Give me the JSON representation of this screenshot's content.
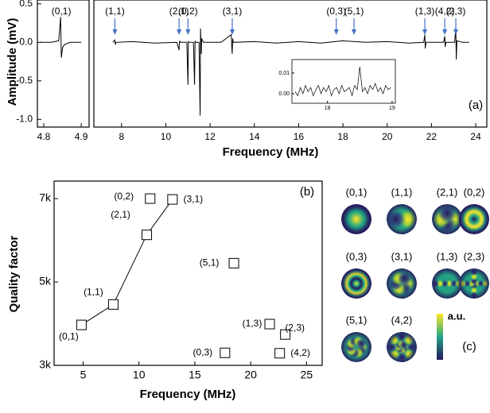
{
  "chart_data": [
    {
      "type": "line",
      "panel_label": "(a)",
      "ylabel": "Amplitude (mV)",
      "xlabel": "Frequency (MHz)",
      "ylim": [
        -1.1,
        0.55
      ],
      "yticks": [
        0.5,
        {
          "value": 0,
          "label": "0.0"
        },
        -0.5,
        {
          "value": -1,
          "label": "-1.0"
        }
      ],
      "color": "#000000",
      "annotation_color": "#4472c4",
      "segments": [
        {
          "xlim": [
            4.783,
            4.921
          ],
          "xticks": [
            4.8,
            4.9
          ],
          "x": [
            4.79,
            4.82,
            4.84,
            4.845,
            4.847,
            4.85,
            4.855,
            4.87,
            4.9
          ],
          "values": [
            0,
            0,
            0.02,
            0.33,
            -0.2,
            -0.07,
            -0.03,
            0,
            0
          ],
          "annotations": [
            {
              "text": "(0,1)",
              "x": 4.847,
              "arrow": false
            }
          ]
        },
        {
          "xlim": [
            6.75,
            24.5
          ],
          "xticks": [
            8,
            10,
            12,
            14,
            16,
            18,
            20,
            22,
            24
          ],
          "x": [
            7.6,
            7.7,
            7.72,
            7.75,
            8.5,
            9.5,
            10.5,
            10.6,
            10.62,
            10.65,
            10.95,
            11.0,
            11.02,
            11.05,
            11.25,
            11.3,
            11.32,
            11.35,
            11.5,
            11.55,
            11.57,
            11.6,
            11.62,
            11.7,
            12.5,
            12.95,
            13.0,
            13.02,
            13.05,
            14,
            15,
            16,
            17,
            18,
            19,
            20,
            21,
            21.65,
            21.7,
            21.72,
            21.75,
            22.55,
            22.6,
            22.62,
            22.65,
            23.05,
            23.1,
            23.12,
            23.15,
            23.4,
            23.7
          ],
          "values": [
            0,
            0.03,
            -0.03,
            0,
            0.01,
            -0.01,
            0,
            -0.1,
            0.02,
            0,
            0,
            -0.55,
            0.01,
            0,
            0,
            -0.55,
            0.02,
            0,
            0,
            -0.95,
            0.18,
            -0.15,
            0.05,
            0,
            0,
            0.1,
            -0.15,
            0.05,
            0,
            0.01,
            -0.01,
            0.01,
            -0.01,
            0.02,
            0,
            0.01,
            -0.01,
            0,
            0.1,
            -0.08,
            0,
            0,
            0.08,
            -0.06,
            0,
            0,
            0.2,
            -0.22,
            0.02,
            0,
            0
          ],
          "annotations": [
            {
              "text": "(1,1)",
              "x": 7.7,
              "arrow": true
            },
            {
              "text": "(2,1)",
              "x": 10.6,
              "arrow": true
            },
            {
              "text": "(0,2)",
              "x": 11.0,
              "arrow": true
            },
            {
              "text": "(3,1)",
              "x": 13.0,
              "arrow": true
            },
            {
              "text": "(0,3)",
              "x": 17.7,
              "arrow": true
            },
            {
              "text": "(5,1)",
              "x": 18.5,
              "arrow": true
            },
            {
              "text": "(1,3)",
              "x": 21.7,
              "arrow": true
            },
            {
              "text": "(4,2)",
              "x": 22.6,
              "arrow": true
            },
            {
              "text": "(2,3)",
              "x": 23.1,
              "arrow": true
            }
          ]
        }
      ]
    },
    {
      "type": "line",
      "xlim": [
        17.45,
        19.05
      ],
      "ylim": [
        -0.0046,
        0.0165
      ],
      "xticks": [
        18,
        19
      ],
      "yticks": [
        {
          "value": 0,
          "label": "0.00"
        },
        0.01
      ],
      "color": "#000000",
      "x": [
        17.5,
        17.54,
        17.58,
        17.62,
        17.66,
        17.7,
        17.74,
        17.78,
        17.82,
        17.86,
        17.9,
        17.94,
        17.98,
        18.02,
        18.06,
        18.1,
        18.14,
        18.18,
        18.22,
        18.26,
        18.3,
        18.34,
        18.38,
        18.42,
        18.46,
        18.5,
        18.54,
        18.58,
        18.62,
        18.66,
        18.7,
        18.74,
        18.78,
        18.82,
        18.86,
        18.9,
        18.94,
        18.98
      ],
      "values": [
        0.001,
        -0.001,
        0.003,
        0.0,
        0.004,
        0.001,
        0.003,
        -0.001,
        0.002,
        0.004,
        0.0,
        0.003,
        0.001,
        0.004,
        -0.001,
        0.002,
        0.003,
        0.0,
        0.004,
        0.001,
        0.002,
        0.003,
        -0.001,
        0.004,
        0.002,
        0.013,
        0.001,
        0.003,
        0.0,
        0.004,
        0.002,
        0.005,
        0.001,
        0.003,
        0.0,
        0.004,
        0.002,
        0.003
      ]
    },
    {
      "type": "scatter",
      "panel_label": "(b)",
      "xlabel": "Frequency (MHz)",
      "ylabel": "Quality factor",
      "xlim": [
        2.4,
        26.4
      ],
      "ylim": [
        3000,
        7420
      ],
      "xticks": [
        5,
        10,
        15,
        20,
        25
      ],
      "yticks": [
        {
          "value": 3000,
          "label": "3k"
        },
        {
          "value": 5000,
          "label": "5k"
        },
        {
          "value": 7000,
          "label": "7k"
        }
      ],
      "groups": [
        {
          "line": true,
          "labels": [
            "(0,1)",
            "(1,1)",
            "(2,1)",
            "(3,1)"
          ],
          "x": [
            4.85,
            7.7,
            10.7,
            13.0
          ],
          "values": [
            3970,
            4460,
            6130,
            6980
          ]
        },
        {
          "line": false,
          "labels": [
            "(0,2)",
            "(5,1)",
            "(1,3)",
            "(2,3)",
            "(0,3)",
            "(4,2)"
          ],
          "x": [
            11.0,
            18.5,
            21.7,
            23.1,
            17.7,
            22.6
          ],
          "values": [
            7000,
            5450,
            3990,
            3740,
            3300,
            3290
          ]
        }
      ]
    },
    {
      "type": "image-grid",
      "panel_label": "(c)",
      "colorbar_label": "a.u.",
      "labels": [
        "(0,1)",
        "(1,1)",
        "(2,1)",
        "(0,2)",
        "(0,3)",
        "(3,1)",
        "(1,3)",
        "(2,3)",
        "(5,1)",
        "(4,2)"
      ]
    }
  ]
}
